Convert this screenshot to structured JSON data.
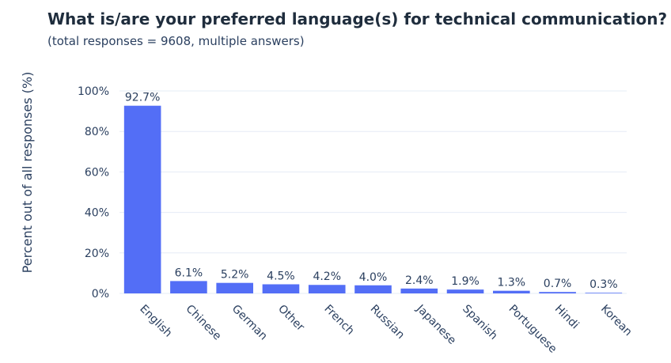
{
  "chart_data": {
    "type": "bar",
    "title": "What is/are your preferred language(s) for technical communication?",
    "subtitle": "(total responses = 9608, multiple answers)",
    "ylabel": "Percent out of all responses (%)",
    "xlabel": "",
    "ylim": [
      0,
      100
    ],
    "yticks": [
      "0%",
      "20%",
      "40%",
      "60%",
      "80%",
      "100%"
    ],
    "grid": true,
    "categories": [
      "English",
      "Chinese",
      "German",
      "Other",
      "French",
      "Russian",
      "Japanese",
      "Spanish",
      "Portuguese",
      "Hindi",
      "Korean"
    ],
    "values": [
      92.7,
      6.1,
      5.2,
      4.5,
      4.2,
      4.0,
      2.4,
      1.9,
      1.3,
      0.7,
      0.3
    ],
    "labels": [
      "92.7%",
      "6.1%",
      "5.2%",
      "4.5%",
      "4.2%",
      "4.0%",
      "2.4%",
      "1.9%",
      "1.3%",
      "0.7%",
      "0.3%"
    ],
    "bar_color": "#536ef6",
    "grid_color": "#e5ecf6"
  }
}
